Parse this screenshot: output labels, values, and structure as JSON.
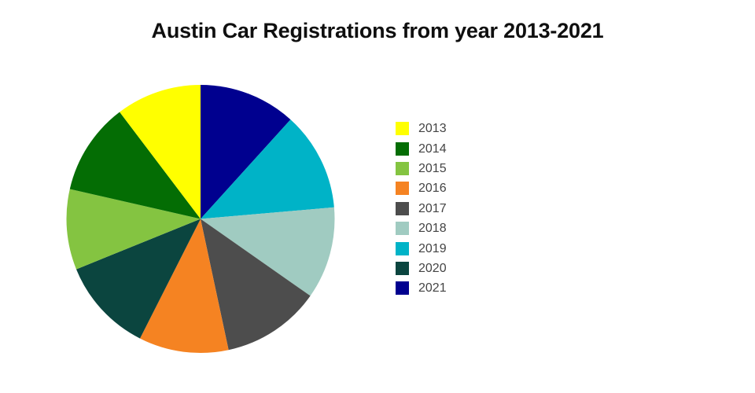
{
  "title": {
    "text": "Austin Car Registrations from year 2013-2021"
  },
  "chart_data": {
    "type": "pie",
    "title": "Austin Car Registrations from year 2013-2021",
    "unit": "percent_of_total",
    "categories": [
      "2013",
      "2014",
      "2015",
      "2016",
      "2017",
      "2018",
      "2019",
      "2020",
      "2021"
    ],
    "values": [
      10.3,
      11.1,
      9.7,
      10.8,
      11.9,
      11.1,
      11.9,
      11.4,
      11.7
    ],
    "colors": {
      "2013": "#FFFF00",
      "2014": "#046D04",
      "2015": "#84C441",
      "2016": "#F58322",
      "2017": "#4D4D4D",
      "2018": "#A0CBC1",
      "2019": "#00B3C7",
      "2020": "#0B453F",
      "2021": "#00008F"
    },
    "display_order_clockwise_from_top": [
      "2021",
      "2019",
      "2018",
      "2017",
      "2016",
      "2020",
      "2015",
      "2014",
      "2013"
    ],
    "start_angle_deg": 0,
    "grid": false,
    "legend_position": "right",
    "data_labels": false
  },
  "legend": {
    "items": [
      {
        "label": "2013",
        "color": "#FFFF00"
      },
      {
        "label": "2014",
        "color": "#046D04"
      },
      {
        "label": "2015",
        "color": "#84C441"
      },
      {
        "label": "2016",
        "color": "#F58322"
      },
      {
        "label": "2017",
        "color": "#4D4D4D"
      },
      {
        "label": "2018",
        "color": "#A0CBC1"
      },
      {
        "label": "2019",
        "color": "#00B3C7"
      },
      {
        "label": "2020",
        "color": "#0B453F"
      },
      {
        "label": "2021",
        "color": "#00008F"
      }
    ]
  }
}
